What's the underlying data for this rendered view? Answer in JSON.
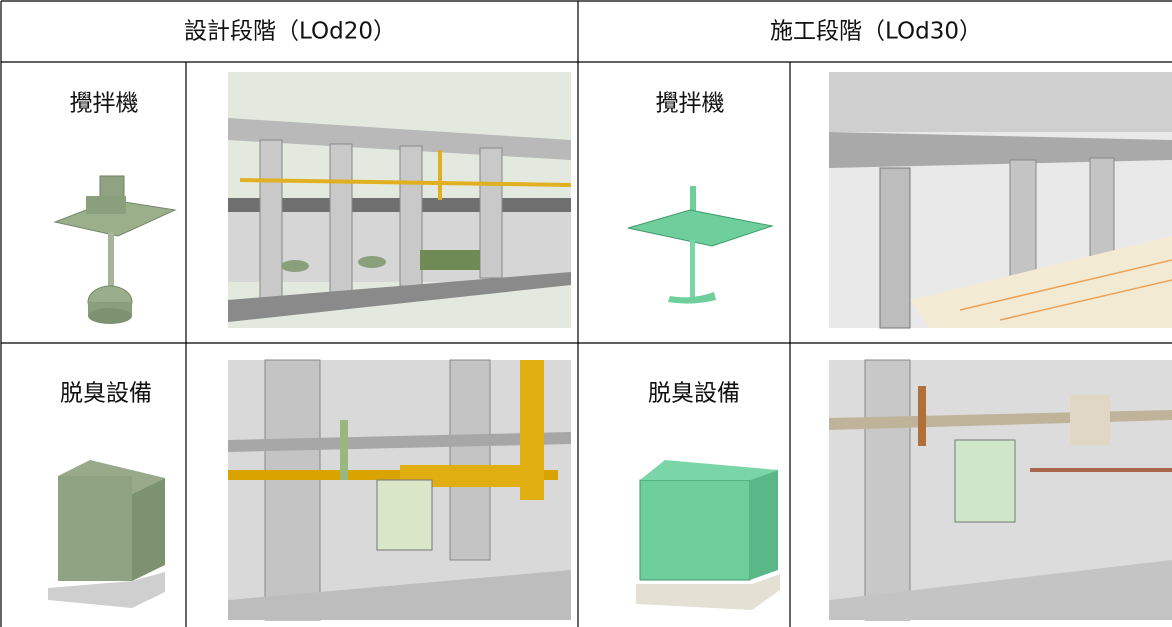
{
  "table": {
    "header": [
      "設計段階（LOd20）",
      "施工段階（LOd30）"
    ],
    "rows": [
      [
        "攪拌機",
        "攪拌機"
      ],
      [
        "脱臭設備",
        "脱臭設備"
      ]
    ]
  }
}
